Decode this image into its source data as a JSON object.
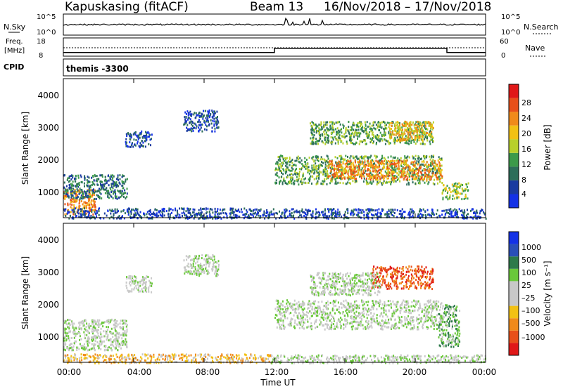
{
  "header": {
    "station": "Kapuskasing (fitACF)",
    "beam_label": "Beam 13",
    "date_range": "16/Nov/2018 – 17/Nov/2018"
  },
  "top_panels": {
    "nsky_label": "N.Sky",
    "nsky_ticks": [
      "10^5",
      "10^0"
    ],
    "nsearch_label": "N.Search",
    "nsearch_ticks": [
      "10^5",
      "10^0"
    ],
    "freq_label": "Freq.",
    "freq_unit": "[MHz]",
    "freq_ticks": [
      "18",
      "8"
    ],
    "nave_label": "Nave",
    "nave_ticks": [
      "60",
      "0"
    ],
    "cpid_label": "CPID",
    "cpid_value": "themis -3300"
  },
  "colors": {
    "power_scale": [
      "#1432e6",
      "#1a3ba0",
      "#2d6e5a",
      "#3c9a4a",
      "#b8d02a",
      "#f2c114",
      "#f08a1a",
      "#e8501a",
      "#e01818"
    ],
    "velocity_scale": [
      "#1432e6",
      "#2a4fb8",
      "#2d7a4a",
      "#6ac83a",
      "#c8c8c8",
      "#c8c8c8",
      "#f2c114",
      "#f08a1a",
      "#e8501a",
      "#e01818"
    ]
  },
  "chart_data": [
    {
      "type": "heatmap",
      "name": "power",
      "ylabel": "Slant Range [km]",
      "yticks": [
        "4000",
        "3000",
        "2000",
        "1000"
      ],
      "ylim": [
        200,
        4500
      ],
      "colorbar_label": "Power [dB]",
      "colorbar_ticks": [
        "28",
        "24",
        "20",
        "16",
        "12",
        "8",
        "4"
      ],
      "regions": [
        {
          "t0": 0.0,
          "t1": 1.8,
          "r0": 300,
          "r1": 1100,
          "level": 6
        },
        {
          "t0": 0.0,
          "t1": 3.6,
          "r0": 800,
          "r1": 1550,
          "level": 2
        },
        {
          "t0": 0.0,
          "t1": 11.0,
          "r0": 200,
          "r1": 520,
          "level": 1
        },
        {
          "t0": 3.5,
          "t1": 5.0,
          "r0": 2400,
          "r1": 2900,
          "level": 1
        },
        {
          "t0": 6.8,
          "t1": 8.8,
          "r0": 2900,
          "r1": 3550,
          "level": 1
        },
        {
          "t0": 12.0,
          "t1": 21.5,
          "r0": 1250,
          "r1": 2150,
          "level": 3
        },
        {
          "t0": 15.0,
          "t1": 21.5,
          "r0": 1400,
          "r1": 2000,
          "level": 6
        },
        {
          "t0": 14.0,
          "t1": 21.0,
          "r0": 2500,
          "r1": 3200,
          "level": 3
        },
        {
          "t0": 18.5,
          "t1": 21.0,
          "r0": 2600,
          "r1": 3200,
          "level": 5
        },
        {
          "t0": 11.0,
          "t1": 24.0,
          "r0": 200,
          "r1": 500,
          "level": 1
        },
        {
          "t0": 21.5,
          "t1": 23.0,
          "r0": 800,
          "r1": 1300,
          "level": 4
        }
      ]
    },
    {
      "type": "heatmap",
      "name": "velocity",
      "ylabel": "Slant Range [km]",
      "yticks": [
        "4000",
        "3000",
        "2000",
        "1000"
      ],
      "ylim": [
        200,
        4500
      ],
      "colorbar_label": "Velocity [m s⁻¹]",
      "colorbar_ticks": [
        "1000",
        "500",
        "100",
        "25",
        "–25",
        "–100",
        "–500",
        "–1000"
      ],
      "regions": [
        {
          "t0": 0.0,
          "t1": 3.6,
          "r0": 600,
          "r1": 1550,
          "level": 4
        },
        {
          "t0": 0.0,
          "t1": 11.8,
          "r0": 200,
          "r1": 480,
          "level": 6
        },
        {
          "t0": 6.8,
          "t1": 8.8,
          "r0": 2900,
          "r1": 3550,
          "level": 4
        },
        {
          "t0": 3.5,
          "t1": 5.0,
          "r0": 2400,
          "r1": 2900,
          "level": 4
        },
        {
          "t0": 12.0,
          "t1": 21.5,
          "r0": 1250,
          "r1": 2150,
          "level": 4
        },
        {
          "t0": 17.5,
          "t1": 21.0,
          "r0": 2500,
          "r1": 3200,
          "level": 8
        },
        {
          "t0": 14.0,
          "t1": 18.0,
          "r0": 2300,
          "r1": 3000,
          "level": 4
        },
        {
          "t0": 21.3,
          "t1": 22.5,
          "r0": 700,
          "r1": 2000,
          "level": 3
        },
        {
          "t0": 11.8,
          "t1": 24.0,
          "r0": 200,
          "r1": 450,
          "level": 4
        }
      ]
    }
  ],
  "x_axis": {
    "label": "Time UT",
    "ticks": [
      "00:00",
      "04:00",
      "08:00",
      "12:00",
      "16:00",
      "20:00",
      "00:00"
    ],
    "range_hours": [
      0,
      24
    ]
  },
  "freq_series": {
    "times": [
      0,
      12,
      12,
      21.8,
      21.8,
      24
    ],
    "freq_mhz": [
      10.0,
      10.0,
      12.3,
      12.3,
      10.0,
      10.0
    ]
  }
}
